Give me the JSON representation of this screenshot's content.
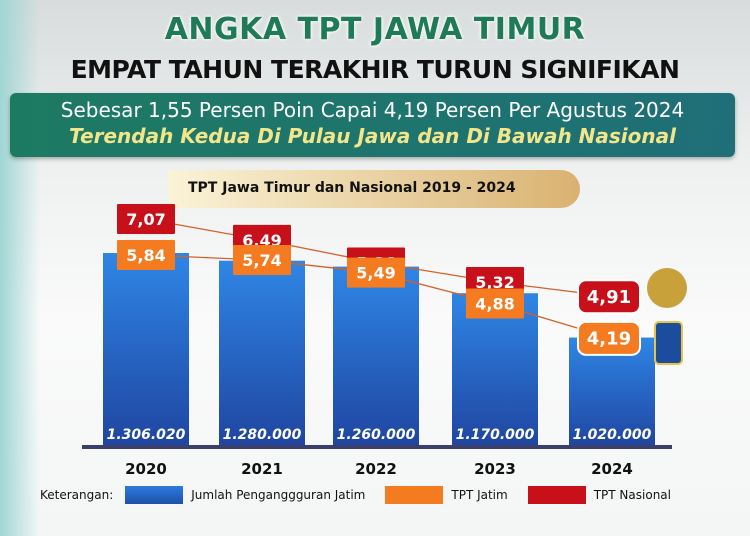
{
  "header": {
    "title": "ANGKA TPT JAWA TIMUR",
    "subtitle": "EMPAT TAHUN TERAKHIR TURUN SIGNIFIKAN"
  },
  "banner": {
    "line1": "Sebesar 1,55 Persen Poin Capai 4,19 Persen Per Agustus 2024",
    "line2": "Terendah Kedua Di Pulau Jawa dan Di Bawah Nasional"
  },
  "chart_data": {
    "type": "bar",
    "title": "TPT Jawa Timur dan Nasional 2019 - 2024",
    "categories": [
      "2020",
      "2021",
      "2022",
      "2023",
      "2024"
    ],
    "series": [
      {
        "name": "Jumlah Penganggguran Jatim",
        "type": "bar",
        "color": "#1f5fc4",
        "values": [
          1306020,
          1280000,
          1260000,
          1170000,
          1020000
        ],
        "labels": [
          "1.306.020",
          "1.280.000",
          "1.260.000",
          "1.170.000",
          "1.020.000"
        ]
      },
      {
        "name": "TPT Jatim",
        "type": "line",
        "color": "#f47b20",
        "values": [
          5.84,
          5.74,
          5.49,
          4.88,
          4.19
        ],
        "labels": [
          "5,84",
          "5,74",
          "5,49",
          "4,88",
          "4,19"
        ]
      },
      {
        "name": "TPT Nasional",
        "type": "line",
        "color": "#c8101a",
        "values": [
          7.07,
          6.49,
          5.86,
          5.32,
          4.91
        ],
        "labels": [
          "7,07",
          "6,49",
          "5,86",
          "5,32",
          "4,91"
        ]
      }
    ],
    "legend_title": "Keterangan:",
    "legend_placement": "bottom"
  }
}
